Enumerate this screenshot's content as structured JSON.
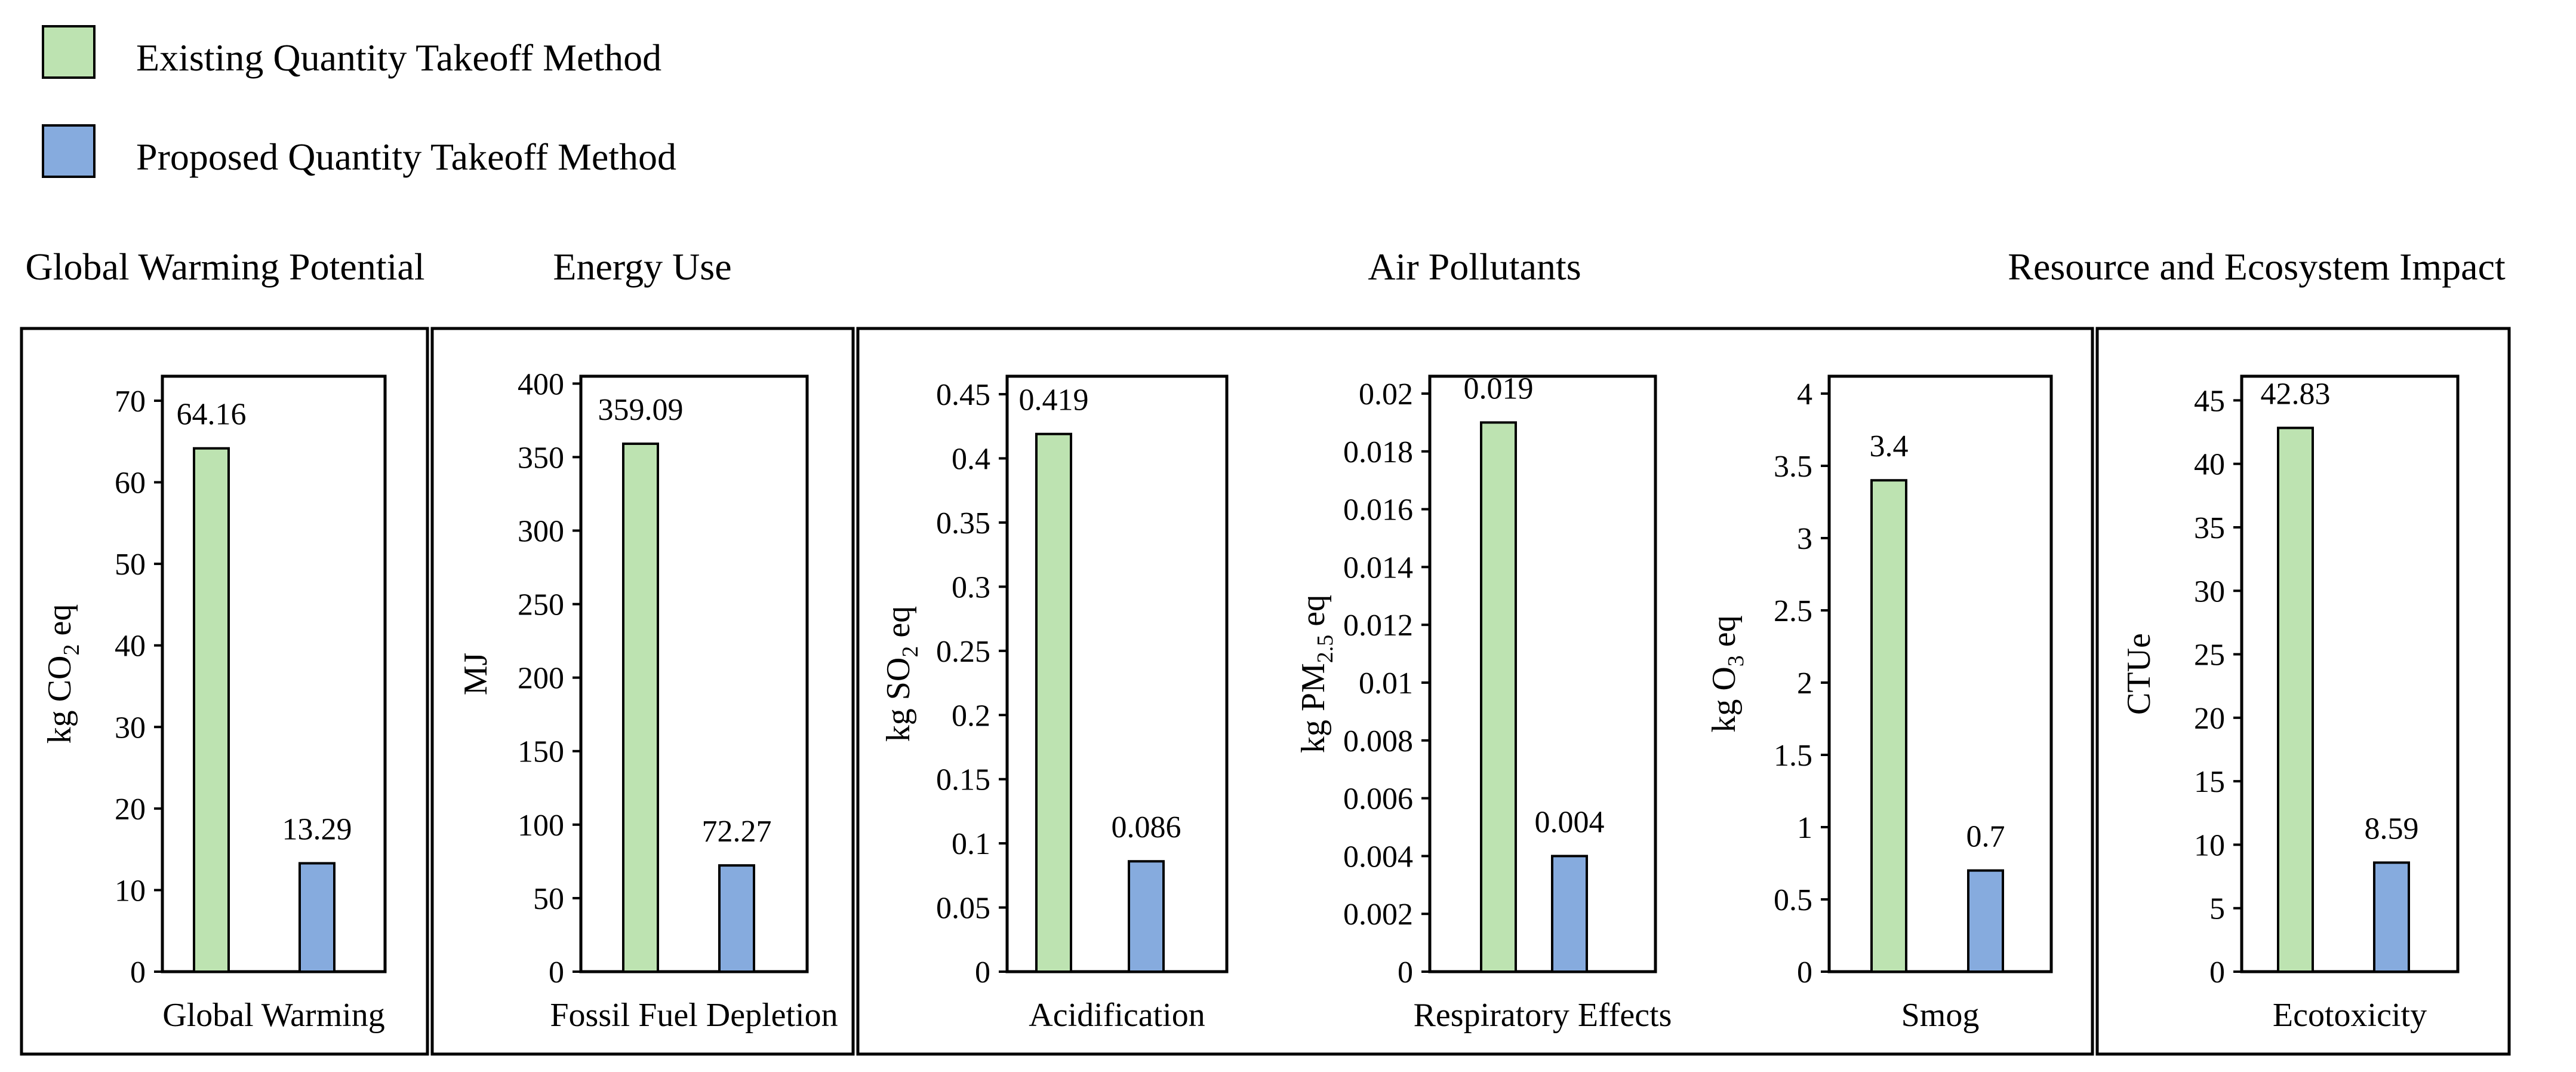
{
  "chart_data": {
    "type": "bar",
    "legend": [
      {
        "name": "Existing Quantity Takeoff Method",
        "color": "#bde3b1"
      },
      {
        "name": "Proposed Quantity Takeoff Method",
        "color": "#86abde"
      }
    ],
    "groups": [
      {
        "title": "Global Warming Potential"
      },
      {
        "title": "Energy Use"
      },
      {
        "title": "Air Pollutants"
      },
      {
        "title": "Resource and Ecosystem Impact"
      }
    ],
    "panels": [
      {
        "category": "Global Warming",
        "ylabel": {
          "main": "kg CO",
          "sub": "2",
          "tail": " eq"
        },
        "ylim": [
          0,
          73
        ],
        "ticks": [
          "0",
          "10",
          "20",
          "30",
          "40",
          "50",
          "60",
          "70"
        ],
        "tick_values": [
          0,
          10,
          20,
          30,
          40,
          50,
          60,
          70
        ],
        "series": [
          {
            "name": "Existing Quantity Takeoff Method",
            "value": 64.16,
            "label": "64.16"
          },
          {
            "name": "Proposed Quantity Takeoff Method",
            "value": 13.29,
            "label": "13.29"
          }
        ]
      },
      {
        "category": "Fossil Fuel Depletion",
        "ylabel": {
          "main": "MJ",
          "sub": "",
          "tail": ""
        },
        "ylim": [
          0,
          405
        ],
        "ticks": [
          "0",
          "50",
          "100",
          "150",
          "200",
          "250",
          "300",
          "350",
          "400"
        ],
        "tick_values": [
          0,
          50,
          100,
          150,
          200,
          250,
          300,
          350,
          400
        ],
        "series": [
          {
            "name": "Existing Quantity Takeoff Method",
            "value": 359.09,
            "label": "359.09"
          },
          {
            "name": "Proposed Quantity Takeoff Method",
            "value": 72.27,
            "label": "72.27"
          }
        ]
      },
      {
        "category": "Acidification",
        "ylabel": {
          "main": "kg SO",
          "sub": "2",
          "tail": " eq"
        },
        "ylim": [
          0,
          0.464
        ],
        "ticks": [
          "0",
          "0.05",
          "0.1",
          "0.15",
          "0.2",
          "0.25",
          "0.3",
          "0.35",
          "0.4",
          "0.45"
        ],
        "tick_values": [
          0,
          0.05,
          0.1,
          0.15,
          0.2,
          0.25,
          0.3,
          0.35,
          0.4,
          0.45
        ],
        "series": [
          {
            "name": "Existing Quantity Takeoff Method",
            "value": 0.419,
            "label": "0.419"
          },
          {
            "name": "Proposed Quantity Takeoff Method",
            "value": 0.086,
            "label": "0.086"
          }
        ]
      },
      {
        "category": "Respiratory Effects",
        "ylabel": {
          "main": "kg PM",
          "sub": "2.5",
          "tail": " eq"
        },
        "ylim": [
          0,
          0.0206
        ],
        "ticks": [
          "0",
          "0.002",
          "0.004",
          "0.006",
          "0.008",
          "0.01",
          "0.012",
          "0.014",
          "0.016",
          "0.018",
          "0.02"
        ],
        "tick_values": [
          0,
          0.002,
          0.004,
          0.006,
          0.008,
          0.01,
          0.012,
          0.014,
          0.016,
          0.018,
          0.02
        ],
        "series": [
          {
            "name": "Existing Quantity Takeoff Method",
            "value": 0.019,
            "label": "0.019"
          },
          {
            "name": "Proposed Quantity Takeoff Method",
            "value": 0.004,
            "label": "0.004"
          }
        ]
      },
      {
        "category": "Smog",
        "ylabel": {
          "main": "kg O",
          "sub": "3",
          "tail": " eq"
        },
        "ylim": [
          0,
          4.12
        ],
        "ticks": [
          "0",
          "0.5",
          "1",
          "1.5",
          "2",
          "2.5",
          "3",
          "3.5",
          "4"
        ],
        "tick_values": [
          0,
          0.5,
          1,
          1.5,
          2,
          2.5,
          3,
          3.5,
          4
        ],
        "series": [
          {
            "name": "Existing Quantity Takeoff Method",
            "value": 3.4,
            "label": "3.4"
          },
          {
            "name": "Proposed Quantity Takeoff Method",
            "value": 0.7,
            "label": "0.7"
          }
        ]
      },
      {
        "category": "Ecotoxicity",
        "ylabel": {
          "main": "CTUe",
          "sub": "",
          "tail": ""
        },
        "ylim": [
          0,
          46.9
        ],
        "ticks": [
          "0",
          "5",
          "10",
          "15",
          "20",
          "25",
          "30",
          "35",
          "40",
          "45"
        ],
        "tick_values": [
          0,
          5,
          10,
          15,
          20,
          25,
          30,
          35,
          40,
          45
        ],
        "series": [
          {
            "name": "Existing Quantity Takeoff Method",
            "value": 42.83,
            "label": "42.83"
          },
          {
            "name": "Proposed Quantity Takeoff Method",
            "value": 8.59,
            "label": "8.59"
          }
        ]
      }
    ]
  }
}
